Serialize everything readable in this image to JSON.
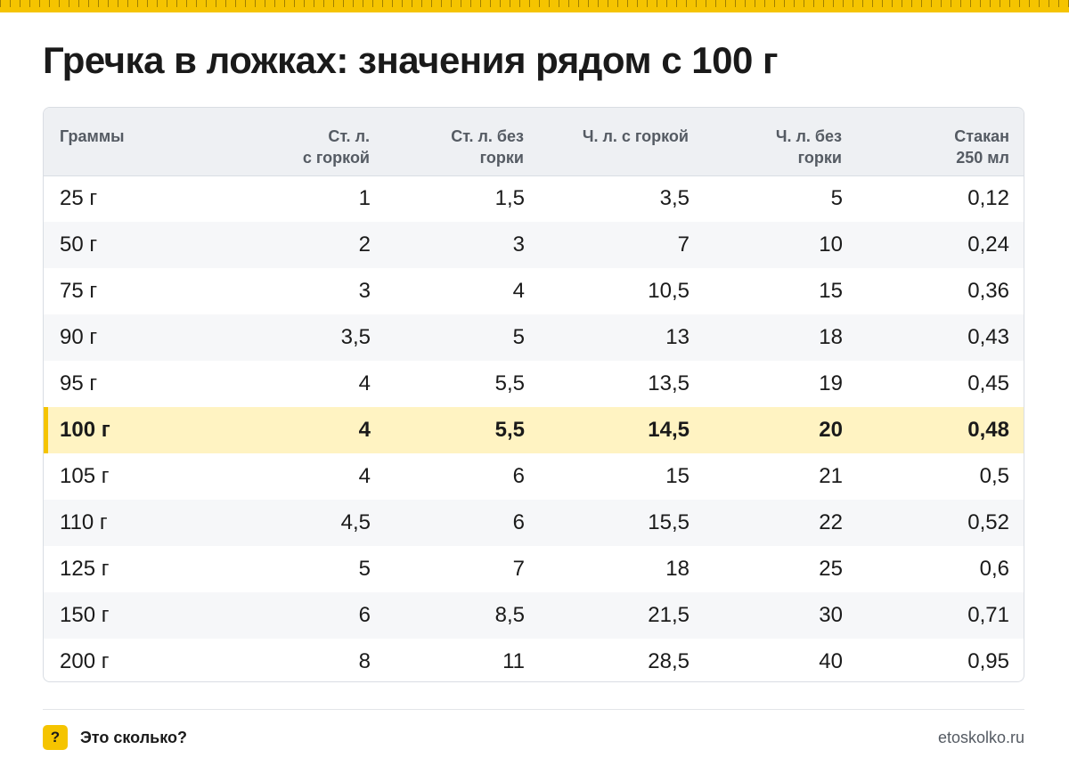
{
  "header": {
    "title": "Гречка в ложках: значения рядом с 100 г"
  },
  "table": {
    "columns": [
      "Граммы",
      "Ст. л.\nс горкой",
      "Ст. л. без\nгорки",
      "Ч. л. с горкой",
      "Ч. л. без\nгорки",
      "Стакан\n250 мл"
    ],
    "rows": [
      [
        "25 г",
        "1",
        "1,5",
        "3,5",
        "5",
        "0,12"
      ],
      [
        "50 г",
        "2",
        "3",
        "7",
        "10",
        "0,24"
      ],
      [
        "75 г",
        "3",
        "4",
        "10,5",
        "15",
        "0,36"
      ],
      [
        "90 г",
        "3,5",
        "5",
        "13",
        "18",
        "0,43"
      ],
      [
        "95 г",
        "4",
        "5,5",
        "13,5",
        "19",
        "0,45"
      ],
      [
        "100 г",
        "4",
        "5,5",
        "14,5",
        "20",
        "0,48"
      ],
      [
        "105 г",
        "4",
        "6",
        "15",
        "21",
        "0,5"
      ],
      [
        "110 г",
        "4,5",
        "6",
        "15,5",
        "22",
        "0,52"
      ],
      [
        "125 г",
        "5",
        "7",
        "18",
        "25",
        "0,6"
      ],
      [
        "150 г",
        "6",
        "8,5",
        "21,5",
        "30",
        "0,71"
      ],
      [
        "200 г",
        "8",
        "11",
        "28,5",
        "40",
        "0,95"
      ]
    ],
    "highlight_row": 5
  },
  "footer": {
    "badge": "?",
    "brand": "Это сколько?",
    "site": "etoskolko.ru"
  },
  "colors": {
    "accent": "#f5c400",
    "highlight_bg": "#fff3c2",
    "header_bg": "#eef0f3",
    "stripe_bg": "#f6f7f9"
  }
}
